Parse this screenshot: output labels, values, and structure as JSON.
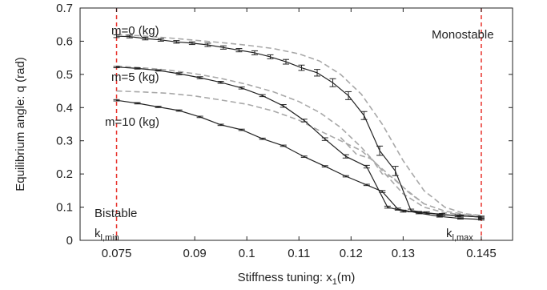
{
  "chart_data": {
    "type": "line",
    "xlabel": "Stiffness tuning: x",
    "xlabel_sub": "1",
    "xlabel_unit": "(m)",
    "ylabel": "Equilibrium angle: q (rad)",
    "xlim": [
      0.068,
      0.151
    ],
    "ylim": [
      0,
      0.7
    ],
    "xticks": [
      0.075,
      0.09,
      0.1,
      0.11,
      0.12,
      0.13,
      0.145
    ],
    "xtick_labels": [
      "0.075",
      "0.09",
      "0.1",
      "0.11",
      "0.12",
      "0.13",
      "0.145"
    ],
    "yticks": [
      0,
      0.1,
      0.2,
      0.3,
      0.4,
      0.5,
      0.6,
      0.7
    ],
    "ytick_labels": [
      "0",
      "0.1",
      "0.2",
      "0.3",
      "0.4",
      "0.5",
      "0.6",
      "0.7"
    ],
    "grid": false,
    "vlines": [
      {
        "x": 0.075,
        "color": "#e8302a",
        "style": "dashed"
      },
      {
        "x": 0.145,
        "color": "#e8302a",
        "style": "dashed"
      }
    ],
    "series": [
      {
        "name": "m=0 (kg)",
        "style": "solid",
        "color": "#222222",
        "x": [
          0.075,
          0.0775,
          0.0805,
          0.0835,
          0.0865,
          0.0895,
          0.0925,
          0.0955,
          0.0985,
          0.1015,
          0.1045,
          0.1075,
          0.1105,
          0.1135,
          0.1165,
          0.1195,
          0.1225,
          0.1255,
          0.1285,
          0.1315,
          0.1345,
          0.1375,
          0.1405,
          0.145
        ],
        "y": [
          0.615,
          0.614,
          0.608,
          0.604,
          0.598,
          0.594,
          0.589,
          0.581,
          0.573,
          0.565,
          0.553,
          0.538,
          0.52,
          0.505,
          0.475,
          0.436,
          0.376,
          0.27,
          0.209,
          0.09,
          0.083,
          0.078,
          0.074,
          0.07
        ],
        "err": [
          0.004,
          0.004,
          0.004,
          0.004,
          0.004,
          0.004,
          0.005,
          0.005,
          0.005,
          0.006,
          0.006,
          0.007,
          0.008,
          0.01,
          0.012,
          0.012,
          0.012,
          0.014,
          0.014,
          0.004,
          0.003,
          0.003,
          0.003,
          0.003
        ]
      },
      {
        "name": "m=5 (kg)",
        "style": "solid",
        "color": "#222222",
        "x": [
          0.075,
          0.079,
          0.083,
          0.087,
          0.091,
          0.095,
          0.099,
          0.103,
          0.107,
          0.111,
          0.115,
          0.119,
          0.123,
          0.127,
          0.13,
          0.133,
          0.137,
          0.141,
          0.145
        ],
        "y": [
          0.522,
          0.518,
          0.512,
          0.502,
          0.49,
          0.476,
          0.459,
          0.436,
          0.405,
          0.361,
          0.305,
          0.253,
          0.222,
          0.1,
          0.088,
          0.085,
          0.078,
          0.074,
          0.07
        ],
        "err": [
          0.002,
          0.002,
          0.002,
          0.003,
          0.003,
          0.003,
          0.003,
          0.003,
          0.004,
          0.004,
          0.004,
          0.005,
          0.004,
          0.003,
          0.003,
          0.002,
          0.002,
          0.002,
          0.002
        ]
      },
      {
        "name": "m=10 (kg)",
        "style": "solid",
        "color": "#222222",
        "x": [
          0.075,
          0.079,
          0.083,
          0.087,
          0.091,
          0.095,
          0.099,
          0.103,
          0.107,
          0.111,
          0.115,
          0.119,
          0.123,
          0.126,
          0.129,
          0.133,
          0.137,
          0.141,
          0.145
        ],
        "y": [
          0.422,
          0.413,
          0.402,
          0.391,
          0.372,
          0.348,
          0.333,
          0.306,
          0.285,
          0.252,
          0.223,
          0.193,
          0.167,
          0.147,
          0.094,
          0.082,
          0.072,
          0.066,
          0.063
        ],
        "err": [
          0.002,
          0.002,
          0.002,
          0.002,
          0.002,
          0.002,
          0.002,
          0.002,
          0.002,
          0.002,
          0.002,
          0.002,
          0.002,
          0.003,
          0.003,
          0.002,
          0.002,
          0.002,
          0.002
        ]
      },
      {
        "style": "dashed",
        "color": "#a8a8a8",
        "x": [
          0.075,
          0.08,
          0.085,
          0.09,
          0.095,
          0.1,
          0.105,
          0.11,
          0.114,
          0.118,
          0.122,
          0.126,
          0.13,
          0.134,
          0.138,
          0.142,
          0.145
        ],
        "y": [
          0.62,
          0.616,
          0.61,
          0.603,
          0.596,
          0.588,
          0.578,
          0.562,
          0.54,
          0.5,
          0.44,
          0.35,
          0.24,
          0.15,
          0.1,
          0.08,
          0.075
        ],
        "err": []
      },
      {
        "style": "dashed",
        "color": "#a8a8a8",
        "x": [
          0.075,
          0.08,
          0.085,
          0.09,
          0.095,
          0.1,
          0.105,
          0.11,
          0.114,
          0.118,
          0.122,
          0.126,
          0.13,
          0.134,
          0.138,
          0.142,
          0.145
        ],
        "y": [
          0.525,
          0.52,
          0.513,
          0.502,
          0.488,
          0.47,
          0.448,
          0.418,
          0.385,
          0.34,
          0.28,
          0.21,
          0.14,
          0.1,
          0.083,
          0.076,
          0.073
        ],
        "err": []
      },
      {
        "style": "dashed",
        "color": "#a8a8a8",
        "x": [
          0.075,
          0.08,
          0.085,
          0.09,
          0.095,
          0.1,
          0.105,
          0.11,
          0.114,
          0.118,
          0.122,
          0.126,
          0.13,
          0.134,
          0.138,
          0.142,
          0.145
        ],
        "y": [
          0.45,
          0.447,
          0.443,
          0.435,
          0.423,
          0.41,
          0.39,
          0.362,
          0.33,
          0.3,
          0.27,
          0.215,
          0.16,
          0.11,
          0.088,
          0.078,
          0.075
        ],
        "err": []
      },
      {
        "style": "dashed",
        "color": "#a8a8a8",
        "x": [
          0.118,
          0.121,
          0.124,
          0.126,
          0.128,
          0.131,
          0.134
        ],
        "y": [
          0.31,
          0.26,
          0.245,
          0.2,
          0.19,
          0.145,
          0.11
        ],
        "err": []
      }
    ],
    "annotations": {
      "m0": "m=0 (kg)",
      "m5": "m=5 (kg)",
      "m10": "m=10 (kg)",
      "bistable": "Bistable",
      "monostable": "Monostable",
      "kmin_base": "k",
      "kmin_sub": "l,min",
      "kmax_base": "k",
      "kmax_sub": "l,max"
    }
  }
}
